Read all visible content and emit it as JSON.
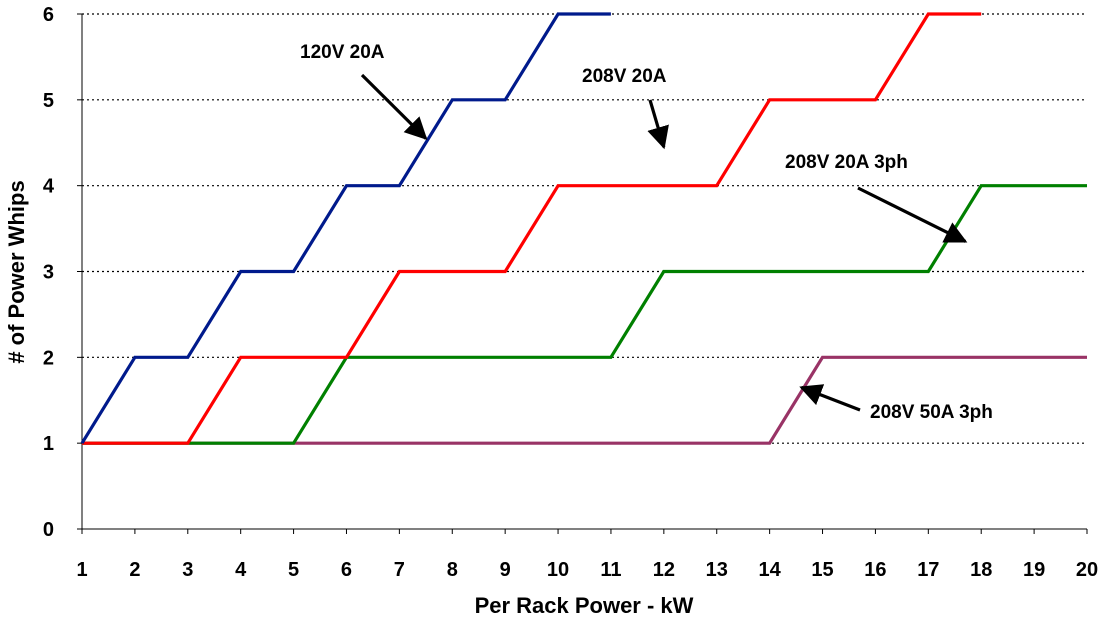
{
  "chart_data": {
    "type": "line",
    "title": "",
    "xlabel": "Per Rack Power - kW",
    "ylabel": "# of Power Whips",
    "xlim": [
      1,
      20
    ],
    "ylim": [
      0,
      6
    ],
    "x_ticks": [
      "1",
      "2",
      "3",
      "4",
      "5",
      "6",
      "7",
      "8",
      "9",
      "10",
      "11",
      "12",
      "13",
      "14",
      "15",
      "16",
      "17",
      "18",
      "19",
      "20"
    ],
    "y_ticks": [
      "0",
      "1",
      "2",
      "3",
      "4",
      "5",
      "6"
    ],
    "grid": "horizontal-dotted",
    "legend": "none",
    "series": [
      {
        "name": "120V 20A",
        "color": "#001a8c",
        "points": [
          [
            1,
            1
          ],
          [
            2,
            2
          ],
          [
            3,
            2
          ],
          [
            4,
            3
          ],
          [
            5,
            3
          ],
          [
            6,
            4
          ],
          [
            7,
            4
          ],
          [
            8,
            5
          ],
          [
            9,
            5
          ],
          [
            10,
            6
          ],
          [
            11,
            6
          ]
        ]
      },
      {
        "name": "208V 20A",
        "color": "#ff0000",
        "points": [
          [
            1,
            1
          ],
          [
            3,
            1
          ],
          [
            4,
            2
          ],
          [
            6,
            2
          ],
          [
            7,
            3
          ],
          [
            9,
            3
          ],
          [
            10,
            4
          ],
          [
            13,
            4
          ],
          [
            14,
            5
          ],
          [
            16,
            5
          ],
          [
            17,
            6
          ],
          [
            18,
            6
          ]
        ]
      },
      {
        "name": "208V 20A 3ph",
        "color": "#008000",
        "points": [
          [
            1,
            1
          ],
          [
            5,
            1
          ],
          [
            6,
            2
          ],
          [
            11,
            2
          ],
          [
            12,
            3
          ],
          [
            17,
            3
          ],
          [
            18,
            4
          ],
          [
            20,
            4
          ]
        ]
      },
      {
        "name": "208V 50A 3ph",
        "color": "#993366",
        "points": [
          [
            1,
            1
          ],
          [
            14,
            1
          ],
          [
            15,
            2
          ],
          [
            20,
            2
          ]
        ]
      }
    ],
    "annotations": [
      {
        "text": "120V 20A",
        "series": 0,
        "target": [
          7.5,
          4.55
        ]
      },
      {
        "text": "208V 20A",
        "series": 1,
        "target": [
          12.0,
          4.45
        ]
      },
      {
        "text": "208V 20A 3ph",
        "series": 2,
        "target": [
          17.7,
          3.35
        ]
      },
      {
        "text": "208V 50A 3ph",
        "series": 3,
        "target": [
          14.6,
          1.65
        ]
      }
    ]
  }
}
